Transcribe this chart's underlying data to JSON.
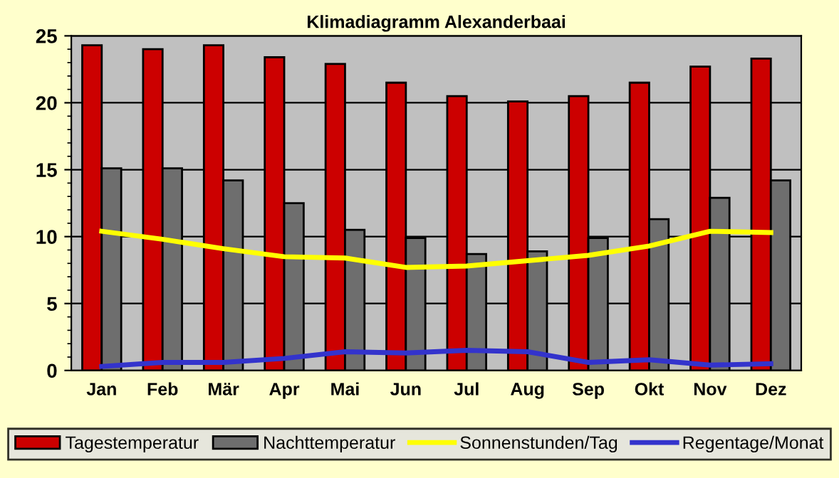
{
  "chart_data": {
    "type": "bar",
    "title": "Klimadiagramm Alexanderbaai",
    "categories": [
      "Jan",
      "Feb",
      "Mär",
      "Apr",
      "Mai",
      "Jun",
      "Jul",
      "Aug",
      "Sep",
      "Okt",
      "Nov",
      "Dez"
    ],
    "series": [
      {
        "name": "Tagestemperatur",
        "color": "#cc0000",
        "values": [
          24.3,
          24.0,
          24.3,
          23.4,
          22.9,
          21.5,
          20.5,
          20.1,
          20.5,
          21.5,
          22.7,
          23.3
        ]
      },
      {
        "name": "Nachttemperatur",
        "color": "#6e6e6e",
        "values": [
          15.1,
          15.1,
          14.2,
          12.5,
          10.5,
          9.9,
          8.7,
          8.9,
          9.9,
          11.3,
          12.9,
          14.2
        ]
      },
      {
        "name": "Sonnenstunden/Tag",
        "type": "line",
        "color": "#ffff00",
        "values": [
          10.4,
          9.8,
          9.1,
          8.5,
          8.4,
          7.7,
          7.8,
          8.2,
          8.6,
          9.3,
          10.4,
          10.3
        ]
      },
      {
        "name": "Regentage/Monat",
        "type": "line",
        "color": "#3333cc",
        "values": [
          0.3,
          0.6,
          0.6,
          0.9,
          1.4,
          1.3,
          1.5,
          1.4,
          0.6,
          0.8,
          0.4,
          0.5
        ]
      }
    ],
    "ylim": [
      0,
      25
    ],
    "yticks": [
      0,
      5,
      10,
      15,
      20,
      25
    ],
    "grid": "y",
    "legend": "bottom",
    "marker": "none"
  }
}
